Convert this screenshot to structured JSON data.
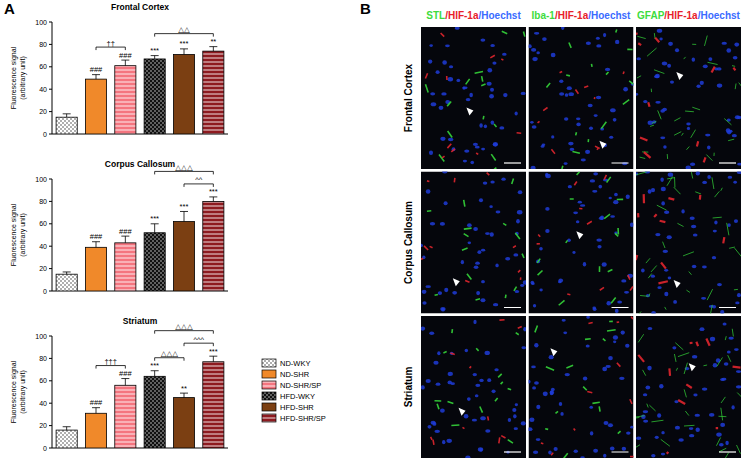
{
  "panel_labels": [
    "A",
    "B"
  ],
  "chart_data": [
    {
      "type": "bar",
      "title": "Frontal Cortex",
      "ylabel": [
        "Fluorescence signal",
        "(arbitrary unit)"
      ],
      "ylim": [
        0,
        100
      ],
      "yticks": [
        0,
        20,
        40,
        60,
        80,
        100
      ],
      "series": [
        {
          "name": "ND-WKY",
          "color": "#ffffff",
          "values": [
            15
          ],
          "errors": [
            3
          ]
        },
        {
          "name": "ND-SHR",
          "color": "#f0892a",
          "values": [
            49
          ],
          "errors": [
            4
          ],
          "significance": "###"
        },
        {
          "name": "ND-SHR/SP",
          "color": "#f4757f",
          "values": [
            61
          ],
          "errors": [
            5
          ],
          "significance": "###"
        },
        {
          "name": "HFD-WKY",
          "color": "#111111",
          "values": [
            67
          ],
          "errors": [
            3
          ],
          "significance": "***"
        },
        {
          "name": "HFD-SHR",
          "color": "#7b3f12",
          "values": [
            71
          ],
          "errors": [
            5
          ],
          "significance": "***"
        },
        {
          "name": "HFD-SHR/SP",
          "color": "#8e1a1f",
          "values": [
            74
          ],
          "errors": [
            4
          ],
          "significance": "**"
        }
      ],
      "comparisons": [
        {
          "groups": [
            "ND-SHR",
            "ND-SHR/SP"
          ],
          "label": "††"
        },
        {
          "groups": [
            "HFD-WKY",
            "HFD-SHR/SP"
          ],
          "label": "△△"
        }
      ]
    },
    {
      "type": "bar",
      "title": "Corpus Callosum",
      "ylabel": [
        "Fluorescence signal",
        "(arbitrary unit)"
      ],
      "ylim": [
        0,
        100
      ],
      "yticks": [
        0,
        20,
        40,
        60,
        80,
        100
      ],
      "series": [
        {
          "name": "ND-WKY",
          "color": "#ffffff",
          "values": [
            15
          ],
          "errors": [
            2
          ]
        },
        {
          "name": "ND-SHR",
          "color": "#f0892a",
          "values": [
            39
          ],
          "errors": [
            5
          ],
          "significance": "###"
        },
        {
          "name": "ND-SHR/SP",
          "color": "#f4757f",
          "values": [
            43
          ],
          "errors": [
            6
          ],
          "significance": "###"
        },
        {
          "name": "HFD-WKY",
          "color": "#111111",
          "values": [
            52
          ],
          "errors": [
            8
          ],
          "significance": "***"
        },
        {
          "name": "HFD-SHR",
          "color": "#7b3f12",
          "values": [
            62
          ],
          "errors": [
            9
          ],
          "significance": "***"
        },
        {
          "name": "HFD-SHR/SP",
          "color": "#8e1a1f",
          "values": [
            80
          ],
          "errors": [
            4
          ],
          "significance": "***"
        }
      ],
      "comparisons": [
        {
          "groups": [
            "HFD-WKY",
            "HFD-SHR/SP"
          ],
          "label": "△△△"
        },
        {
          "groups": [
            "HFD-SHR",
            "HFD-SHR/SP"
          ],
          "label": "^^"
        }
      ]
    },
    {
      "type": "bar",
      "title": "Striatum",
      "ylabel": [
        "Fluorescence signal",
        "(arbitrary unit)"
      ],
      "ylim": [
        0,
        100
      ],
      "yticks": [
        0,
        20,
        40,
        60,
        80,
        100
      ],
      "legend": "right",
      "series": [
        {
          "name": "ND-WKY",
          "color": "#ffffff",
          "values": [
            16
          ],
          "errors": [
            3
          ]
        },
        {
          "name": "ND-SHR",
          "color": "#f0892a",
          "values": [
            31
          ],
          "errors": [
            5
          ],
          "significance": "###"
        },
        {
          "name": "ND-SHR/SP",
          "color": "#f4757f",
          "values": [
            56
          ],
          "errors": [
            6
          ],
          "significance": "###"
        },
        {
          "name": "HFD-WKY",
          "color": "#111111",
          "values": [
            64
          ],
          "errors": [
            5
          ],
          "significance": "***"
        },
        {
          "name": "HFD-SHR",
          "color": "#7b3f12",
          "values": [
            45
          ],
          "errors": [
            4
          ],
          "significance": "**"
        },
        {
          "name": "HFD-SHR/SP",
          "color": "#8e1a1f",
          "values": [
            77
          ],
          "errors": [
            5
          ],
          "significance": "***"
        }
      ],
      "comparisons": [
        {
          "groups": [
            "ND-SHR",
            "ND-SHR/SP"
          ],
          "label": "†††"
        },
        {
          "groups": [
            "HFD-WKY",
            "HFD-SHR/SP"
          ],
          "label": "△△△"
        },
        {
          "groups": [
            "HFD-WKY",
            "HFD-SHR"
          ],
          "label": "△△△"
        },
        {
          "groups": [
            "HFD-SHR",
            "HFD-SHR/SP"
          ],
          "label": "^^^"
        }
      ]
    }
  ],
  "image_panel": {
    "columns": [
      [
        "STL",
        "/HIF-1a",
        "/Hoechst"
      ],
      [
        "Iba-1",
        "/HIF-1a",
        "/Hoechst"
      ],
      [
        "GFAP",
        "/HIF-1a",
        "/Hoechst"
      ]
    ],
    "rows": [
      "Frontal Cortex",
      "Corpus Callosum",
      "Striatum"
    ]
  }
}
